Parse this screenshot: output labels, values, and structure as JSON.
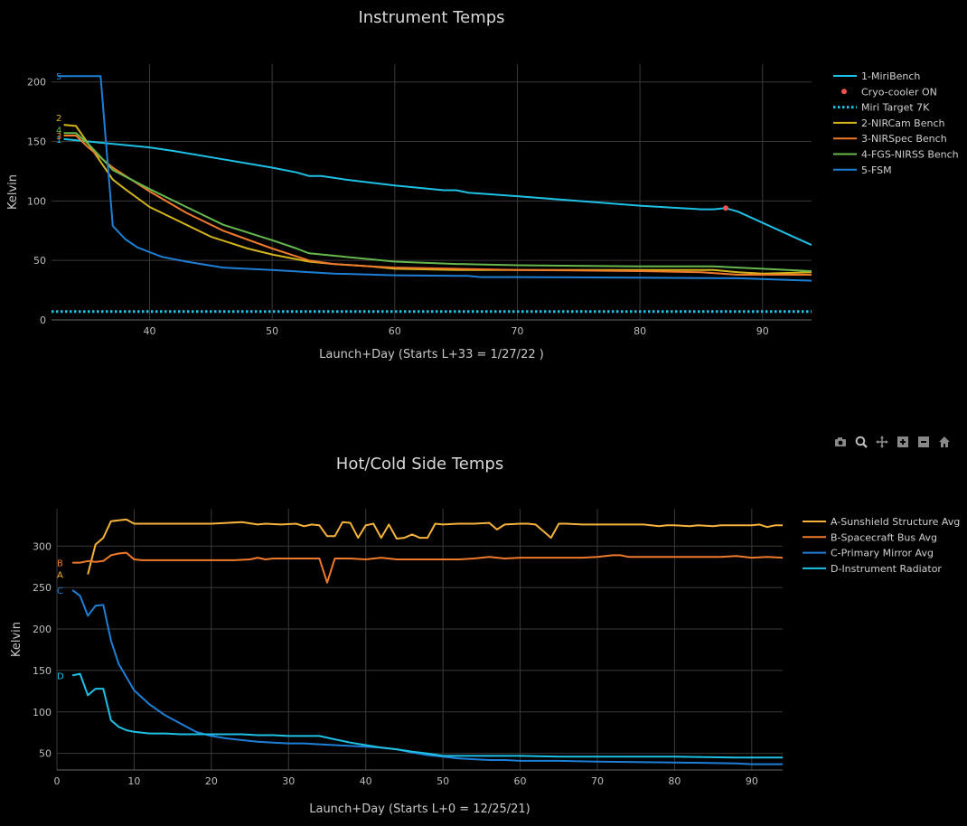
{
  "charts": [
    {
      "title": "Instrument Temps",
      "xlabel": "Launch+Day (Starts L+33 = 1/27/22 )",
      "ylabel": "Kelvin",
      "xlim": [
        32,
        94
      ],
      "ylim": [
        0,
        215
      ],
      "xticks": [
        40,
        50,
        60,
        70,
        80,
        90
      ],
      "yticks": [
        0,
        50,
        100,
        150,
        200
      ],
      "grid": true,
      "legend_position": "right",
      "series": [
        {
          "name": "1-MiriBench",
          "color": "#1fc0e6",
          "style": "solid",
          "end_label": "1",
          "x": [
            33,
            36,
            40,
            42,
            46,
            50,
            52,
            53,
            54,
            56,
            60,
            64,
            65,
            66,
            70,
            75,
            80,
            85,
            86,
            87,
            88,
            94
          ],
          "y": [
            152,
            149,
            145,
            142,
            135,
            128,
            124,
            121,
            121,
            118,
            113,
            109,
            109,
            107,
            104,
            100,
            96,
            93,
            93,
            94,
            91,
            63
          ]
        },
        {
          "name": "Cryo-cooler ON",
          "color": "#ef5350",
          "style": "marker",
          "x": [
            87
          ],
          "y": [
            94
          ]
        },
        {
          "name": "Miri Target 7K",
          "color": "#1fc0e6",
          "style": "dotted",
          "x": [
            32,
            94
          ],
          "y": [
            7,
            7
          ]
        },
        {
          "name": "2-NIRCam Bench",
          "color": "#d4b41a",
          "style": "solid",
          "end_label": "2",
          "x": [
            33,
            34,
            35,
            37,
            38,
            40,
            42,
            45,
            48,
            50,
            53,
            55,
            58,
            60,
            65,
            70,
            80,
            86,
            88,
            90,
            94
          ],
          "y": [
            164,
            163,
            148,
            118,
            110,
            95,
            85,
            70,
            60,
            55,
            49,
            47,
            45,
            43,
            42,
            42,
            42,
            42,
            40,
            39,
            40
          ]
        },
        {
          "name": "3-NIRSpec Bench",
          "color": "#f07a2c",
          "style": "solid",
          "end_label": "3",
          "x": [
            33,
            34,
            35,
            37,
            40,
            43,
            46,
            50,
            53,
            55,
            58,
            60,
            65,
            70,
            80,
            85,
            88,
            90,
            94
          ],
          "y": [
            155,
            155,
            145,
            128,
            108,
            90,
            75,
            60,
            50,
            47,
            45,
            44,
            43,
            42,
            41,
            40,
            38,
            38,
            38
          ]
        },
        {
          "name": "4-FGS-NIRSS Bench",
          "color": "#66b84e",
          "style": "solid",
          "end_label": "4",
          "x": [
            33,
            34,
            35,
            37,
            40,
            43,
            46,
            50,
            52,
            53,
            55,
            58,
            60,
            65,
            70,
            80,
            86,
            88,
            90,
            94
          ],
          "y": [
            157,
            157,
            148,
            126,
            110,
            95,
            80,
            67,
            60,
            56,
            54,
            51,
            49,
            47,
            46,
            45,
            45,
            44,
            43,
            41
          ]
        },
        {
          "name": "5-FSM",
          "color": "#1e7fd6",
          "style": "solid",
          "end_label": "5",
          "x": [
            32.5,
            36,
            37,
            38,
            39,
            40,
            41,
            43,
            46,
            50,
            55,
            60,
            65,
            66,
            67,
            70,
            80,
            88,
            94
          ],
          "y": [
            205,
            205,
            79,
            68,
            61,
            57,
            53,
            49,
            44,
            42,
            39,
            37.5,
            37,
            37,
            36,
            36,
            35.5,
            35,
            33
          ]
        }
      ]
    },
    {
      "title": "Hot/Cold Side Temps",
      "xlabel": "Launch+Day (Starts L+0 = 12/25/21)",
      "ylabel": "Kelvin",
      "xlim": [
        0,
        94
      ],
      "ylim": [
        30,
        345
      ],
      "xticks": [
        0,
        10,
        20,
        30,
        40,
        50,
        60,
        70,
        80,
        90
      ],
      "yticks": [
        50,
        100,
        150,
        200,
        250,
        300
      ],
      "grid": true,
      "legend_position": "right",
      "series": [
        {
          "name": "A-Sunshield Structure Avg",
          "color": "#f5b33b",
          "style": "solid",
          "end_label": "A",
          "x": [
            4,
            5,
            6,
            7,
            8,
            9,
            10,
            11,
            13,
            15,
            17,
            20,
            22,
            24,
            26,
            27,
            29,
            31,
            32,
            33,
            34,
            35,
            36,
            37,
            38,
            39,
            40,
            41,
            42,
            43,
            44,
            45,
            46,
            47,
            48,
            49,
            50,
            52,
            54,
            56,
            57,
            58,
            60,
            61,
            62,
            63,
            64,
            65,
            66,
            68,
            70,
            72,
            74,
            76,
            78,
            79,
            80,
            82,
            83,
            85,
            86,
            88,
            90,
            91,
            92,
            93,
            94
          ],
          "y": [
            266,
            302,
            310,
            330,
            331,
            332,
            327,
            327,
            327,
            327,
            327,
            327,
            328,
            329,
            326,
            327,
            326,
            327,
            324,
            326,
            325,
            312,
            312,
            329,
            328,
            310,
            325,
            327,
            310,
            326,
            309,
            310,
            314,
            310,
            310,
            327,
            326,
            327,
            327,
            328,
            320,
            326,
            327,
            327,
            326,
            318,
            310,
            327,
            327,
            326,
            326,
            326,
            326,
            326,
            324,
            325,
            325,
            324,
            325,
            324,
            325,
            325,
            325,
            326,
            323,
            325,
            325
          ]
        },
        {
          "name": "B-Spacecraft Bus Avg",
          "color": "#f07a2c",
          "style": "solid",
          "end_label": "B",
          "x": [
            2,
            3,
            4,
            5,
            6,
            7,
            8,
            9,
            10,
            11,
            13,
            15,
            17,
            19,
            21,
            23,
            25,
            26,
            27,
            28,
            30,
            33,
            34,
            35,
            36,
            37,
            38,
            40,
            42,
            44,
            46,
            48,
            50,
            52,
            54,
            56,
            58,
            60,
            62,
            64,
            66,
            68,
            70,
            72,
            73,
            74,
            76,
            78,
            80,
            82,
            84,
            86,
            88,
            90,
            92,
            94
          ],
          "y": [
            280,
            280,
            282,
            281,
            282,
            289,
            291,
            292,
            284,
            283,
            283,
            283,
            283,
            283,
            283,
            283,
            284,
            286,
            284,
            285,
            285,
            285,
            285,
            256,
            285,
            285,
            285,
            284,
            286,
            284,
            284,
            284,
            284,
            284,
            285,
            287,
            285,
            286,
            286,
            286,
            286,
            286,
            287,
            289,
            289,
            287,
            287,
            287,
            287,
            287,
            287,
            287,
            288,
            286,
            287,
            286
          ]
        },
        {
          "name": "C-Primary Mirror Avg",
          "color": "#1e7fd6",
          "style": "solid",
          "end_label": "C",
          "x": [
            2,
            3,
            4,
            5,
            6,
            7,
            8,
            9,
            10,
            12,
            14,
            16,
            18,
            20,
            22,
            24,
            26,
            28,
            30,
            32,
            34,
            36,
            38,
            40,
            42,
            44,
            46,
            48,
            50,
            52,
            54,
            56,
            58,
            60,
            65,
            70,
            80,
            88,
            90,
            94
          ],
          "y": [
            247,
            240,
            216,
            228,
            229,
            186,
            158,
            142,
            126,
            109,
            96,
            86,
            76,
            71,
            68,
            66,
            64,
            63,
            62,
            62,
            61,
            60,
            59,
            58,
            57,
            55,
            51,
            48,
            46,
            44,
            43,
            42,
            42,
            41,
            41,
            40,
            39,
            38,
            37,
            37
          ]
        },
        {
          "name": "D-Instrument Radiator",
          "color": "#1fc0e6",
          "style": "solid",
          "end_label": "D",
          "x": [
            2,
            3,
            4,
            5,
            6,
            7,
            8,
            9,
            10,
            12,
            14,
            16,
            18,
            20,
            22,
            24,
            26,
            28,
            30,
            32,
            34,
            36,
            38,
            40,
            42,
            44,
            46,
            48,
            50,
            52,
            54,
            56,
            58,
            60,
            65,
            70,
            80,
            88,
            90,
            94
          ],
          "y": [
            144,
            146,
            120,
            128,
            128,
            90,
            82,
            78,
            76,
            74,
            74,
            73,
            73,
            73,
            73,
            73,
            72,
            72,
            71,
            71,
            71,
            67,
            63,
            60,
            57,
            55,
            52,
            50,
            47,
            47,
            47,
            47,
            47,
            47,
            46,
            46,
            46,
            45,
            45,
            45
          ]
        }
      ]
    }
  ]
}
